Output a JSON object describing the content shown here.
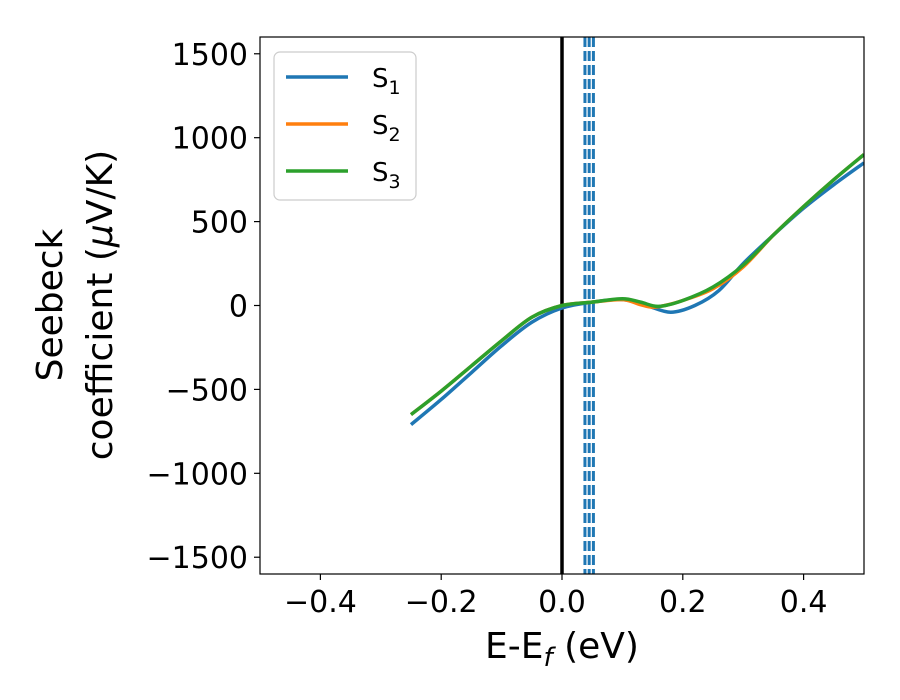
{
  "chart_data": {
    "type": "line",
    "xlabel": {
      "main": "E-E",
      "sub": "f",
      "suffix": " (eV)"
    },
    "ylabel": {
      "line1": "Seebeck",
      "line2_prefix": "coefficient  (",
      "mu": "μ",
      "line2_suffix": "V/K)"
    },
    "xlim": [
      -0.5,
      0.5
    ],
    "ylim": [
      -1600,
      1600
    ],
    "xticks": [
      -0.4,
      -0.2,
      0.0,
      0.2,
      0.4
    ],
    "xtick_labels": [
      "−0.4",
      "−0.2",
      "0.0",
      "0.2",
      "0.4"
    ],
    "yticks": [
      -1500,
      -1000,
      -500,
      0,
      500,
      1000,
      1500
    ],
    "ytick_labels": [
      "−1500",
      "−1000",
      "−500",
      "0",
      "500",
      "1000",
      "1500"
    ],
    "grid": false,
    "legend_placement": "top-left",
    "vertical_lines": [
      {
        "x": 0.0,
        "style": "solid",
        "color": "#000000"
      },
      {
        "x": 0.038,
        "style": "dashed",
        "color": "#1f77b4"
      },
      {
        "x": 0.045,
        "style": "dashed",
        "color": "#1f77b4"
      },
      {
        "x": 0.052,
        "style": "dashed",
        "color": "#1f77b4"
      }
    ],
    "series": [
      {
        "name": "S",
        "sub": "1",
        "color": "#1f77b4",
        "x": [
          -0.25,
          -0.2,
          -0.15,
          -0.1,
          -0.05,
          0.0,
          0.05,
          0.1,
          0.14,
          0.18,
          0.22,
          0.26,
          0.3,
          0.35,
          0.4,
          0.45,
          0.5
        ],
        "y": [
          -710,
          -560,
          -400,
          -240,
          -100,
          -15,
          20,
          35,
          0,
          -40,
          0,
          90,
          250,
          420,
          580,
          720,
          850
        ]
      },
      {
        "name": "S",
        "sub": "2",
        "color": "#ff7f0e",
        "x": [
          -0.25,
          -0.2,
          -0.15,
          -0.1,
          -0.05,
          0.0,
          0.05,
          0.1,
          0.13,
          0.15,
          0.17,
          0.2,
          0.25,
          0.3,
          0.35,
          0.4,
          0.45,
          0.5
        ],
        "y": [
          -650,
          -510,
          -360,
          -210,
          -70,
          0,
          20,
          35,
          5,
          -10,
          0,
          30,
          100,
          230,
          420,
          590,
          750,
          900
        ]
      },
      {
        "name": "S",
        "sub": "3",
        "color": "#2ca02c",
        "x": [
          -0.25,
          -0.2,
          -0.15,
          -0.1,
          -0.05,
          0.0,
          0.05,
          0.1,
          0.13,
          0.16,
          0.2,
          0.25,
          0.3,
          0.35,
          0.4,
          0.45,
          0.5
        ],
        "y": [
          -650,
          -510,
          -360,
          -210,
          -70,
          0,
          20,
          40,
          20,
          -5,
          30,
          110,
          240,
          420,
          590,
          750,
          900
        ]
      }
    ]
  }
}
